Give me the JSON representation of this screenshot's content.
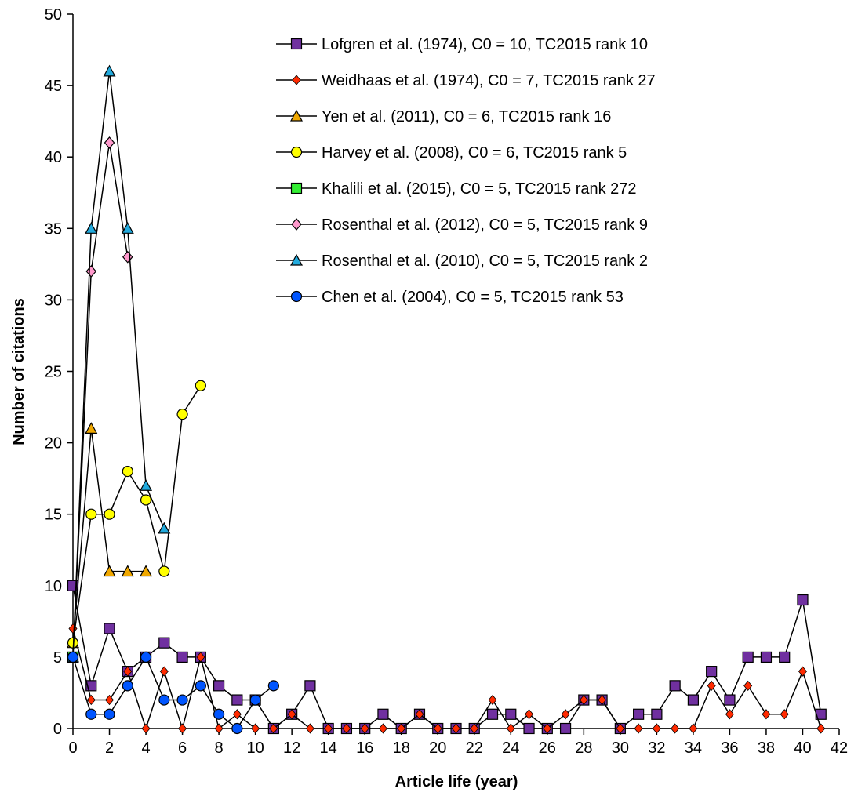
{
  "chart_data": {
    "type": "line",
    "title": "",
    "xlabel": "Article life (year)",
    "ylabel": "Number of citations",
    "xlim": [
      0,
      42
    ],
    "ylim": [
      0,
      50
    ],
    "x_ticks": [
      0,
      2,
      4,
      6,
      8,
      10,
      12,
      14,
      16,
      18,
      20,
      22,
      24,
      26,
      28,
      30,
      32,
      34,
      36,
      38,
      40,
      42
    ],
    "y_ticks": [
      0,
      5,
      10,
      15,
      20,
      25,
      30,
      35,
      40,
      45,
      50
    ],
    "grid": false,
    "legend_position": "top-right",
    "series": [
      {
        "name": "Lofgren et al. (1974), C0 = 10, TC2015 rank 10",
        "marker": "square",
        "color": "#7030a0",
        "x": [
          0,
          1,
          2,
          3,
          4,
          5,
          6,
          7,
          8,
          9,
          10,
          11,
          12,
          13,
          14,
          15,
          16,
          17,
          18,
          19,
          20,
          21,
          22,
          23,
          24,
          25,
          26,
          27,
          28,
          29,
          30,
          31,
          32,
          33,
          34,
          35,
          36,
          37,
          38,
          39,
          40,
          41
        ],
        "y": [
          10,
          3,
          7,
          4,
          5,
          6,
          5,
          5,
          3,
          2,
          2,
          0,
          1,
          3,
          0,
          0,
          0,
          1,
          0,
          1,
          0,
          0,
          0,
          1,
          1,
          0,
          0,
          0,
          2,
          2,
          0,
          1,
          1,
          3,
          2,
          4,
          2,
          5,
          5,
          5,
          9,
          1
        ]
      },
      {
        "name": "Weidhaas et al. (1974), C0 = 7, TC2015 rank 27",
        "marker": "diamond-small",
        "color": "#ff2a00",
        "x": [
          0,
          1,
          2,
          3,
          4,
          5,
          6,
          7,
          8,
          9,
          10,
          11,
          12,
          13,
          14,
          15,
          16,
          17,
          18,
          19,
          20,
          21,
          22,
          23,
          24,
          25,
          26,
          27,
          28,
          29,
          30,
          31,
          32,
          33,
          34,
          35,
          36,
          37,
          38,
          39,
          40,
          41
        ],
        "y": [
          7,
          2,
          2,
          4,
          0,
          4,
          0,
          5,
          0,
          1,
          0,
          0,
          1,
          0,
          0,
          0,
          0,
          0,
          0,
          1,
          0,
          0,
          0,
          2,
          0,
          1,
          0,
          1,
          2,
          2,
          0,
          0,
          0,
          0,
          0,
          3,
          1,
          3,
          1,
          1,
          4,
          0
        ]
      },
      {
        "name": "Yen et al. (2011), C0 = 6, TC2015 rank 16",
        "marker": "triangle",
        "color": "#f0a800",
        "x": [
          0,
          1,
          2,
          3,
          4
        ],
        "y": [
          6,
          21,
          11,
          11,
          11
        ]
      },
      {
        "name": "Harvey et al. (2008), C0 = 6, TC2015 rank 5",
        "marker": "circle",
        "color": "#ffff00",
        "x": [
          0,
          1,
          2,
          3,
          4,
          5,
          6,
          7
        ],
        "y": [
          6,
          15,
          15,
          18,
          16,
          11,
          22,
          24
        ]
      },
      {
        "name": "Khalili et al. (2015), C0 = 5, TC2015 rank 272",
        "marker": "square",
        "color": "#33ee33",
        "x": [
          0
        ],
        "y": [
          5
        ]
      },
      {
        "name": "Rosenthal et al. (2012), C0 = 5, TC2015 rank 9",
        "marker": "diamond",
        "color": "#ff99cc",
        "x": [
          0,
          1,
          2,
          3
        ],
        "y": [
          5,
          32,
          41,
          33
        ]
      },
      {
        "name": "Rosenthal et al. (2010), C0 = 5, TC2015 rank 2",
        "marker": "triangle",
        "color": "#22aadd",
        "x": [
          0,
          1,
          2,
          3,
          4,
          5
        ],
        "y": [
          5,
          35,
          46,
          35,
          17,
          14
        ]
      },
      {
        "name": "Chen et al. (2004), C0 = 5, TC2015 rank 53",
        "marker": "circle",
        "color": "#0055ff",
        "x": [
          0,
          1,
          2,
          3,
          4,
          5,
          6,
          7,
          8,
          9,
          10,
          11
        ],
        "y": [
          5,
          1,
          1,
          3,
          5,
          2,
          2,
          3,
          1,
          0,
          2,
          3
        ]
      }
    ]
  }
}
